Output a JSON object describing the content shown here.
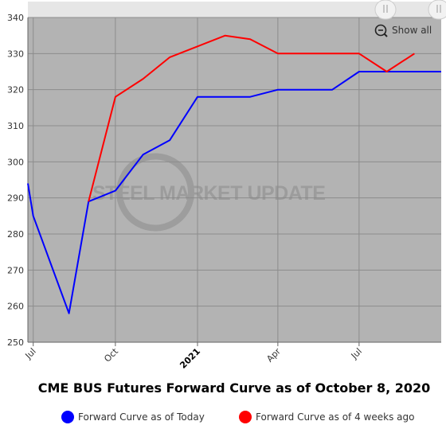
{
  "chart_data": {
    "type": "line",
    "title": "CME BUS Futures Forward Curve as of October 8, 2020",
    "x_tick_labels": [
      {
        "date": "2020-07-01",
        "label": "Jul",
        "bold": false
      },
      {
        "date": "2020-10-01",
        "label": "Oct",
        "bold": false
      },
      {
        "date": "2021-01-01",
        "label": "2021",
        "bold": true
      },
      {
        "date": "2021-04-01",
        "label": "Apr",
        "bold": false
      },
      {
        "date": "2021-07-01",
        "label": "Jul",
        "bold": false
      }
    ],
    "xlim": [
      "2020-06-25",
      "2021-10-01"
    ],
    "ylim": [
      250,
      340
    ],
    "y_ticks": [
      250,
      260,
      270,
      280,
      290,
      300,
      310,
      320,
      330,
      340
    ],
    "grid": true,
    "legend_position": "bottom",
    "background_color": "#b3b3b3",
    "watermark": "STEEL MARKET UPDATE",
    "series": [
      {
        "name": "Forward Curve as of Today",
        "color": "#0000ff",
        "points": [
          {
            "x": "2020-06-25",
            "y": 294
          },
          {
            "x": "2020-07-01",
            "y": 285
          },
          {
            "x": "2020-08-10",
            "y": 258
          },
          {
            "x": "2020-09-01",
            "y": 289
          },
          {
            "x": "2020-10-01",
            "y": 292
          },
          {
            "x": "2020-11-01",
            "y": 302
          },
          {
            "x": "2020-12-01",
            "y": 306
          },
          {
            "x": "2021-01-01",
            "y": 318
          },
          {
            "x": "2021-02-01",
            "y": 318
          },
          {
            "x": "2021-03-01",
            "y": 318
          },
          {
            "x": "2021-04-01",
            "y": 320
          },
          {
            "x": "2021-05-01",
            "y": 320
          },
          {
            "x": "2021-06-01",
            "y": 320
          },
          {
            "x": "2021-07-01",
            "y": 325
          },
          {
            "x": "2021-08-01",
            "y": 325
          },
          {
            "x": "2021-09-01",
            "y": 325
          },
          {
            "x": "2021-10-01",
            "y": 325
          }
        ]
      },
      {
        "name": "Forward Curve as of 4 weeks ago",
        "color": "#ff0000",
        "points": [
          {
            "x": "2020-09-01",
            "y": 289
          },
          {
            "x": "2020-10-01",
            "y": 318
          },
          {
            "x": "2020-11-01",
            "y": 323
          },
          {
            "x": "2020-12-01",
            "y": 329
          },
          {
            "x": "2021-01-01",
            "y": 332
          },
          {
            "x": "2021-02-01",
            "y": 335
          },
          {
            "x": "2021-03-01",
            "y": 334
          },
          {
            "x": "2021-04-01",
            "y": 330
          },
          {
            "x": "2021-05-01",
            "y": 330
          },
          {
            "x": "2021-06-01",
            "y": 330
          },
          {
            "x": "2021-07-01",
            "y": 330
          },
          {
            "x": "2021-08-01",
            "y": 325
          },
          {
            "x": "2021-09-01",
            "y": 330
          }
        ]
      }
    ]
  },
  "zoom": {
    "show_all_label": "Show all",
    "icon": "zoom-out-icon"
  }
}
